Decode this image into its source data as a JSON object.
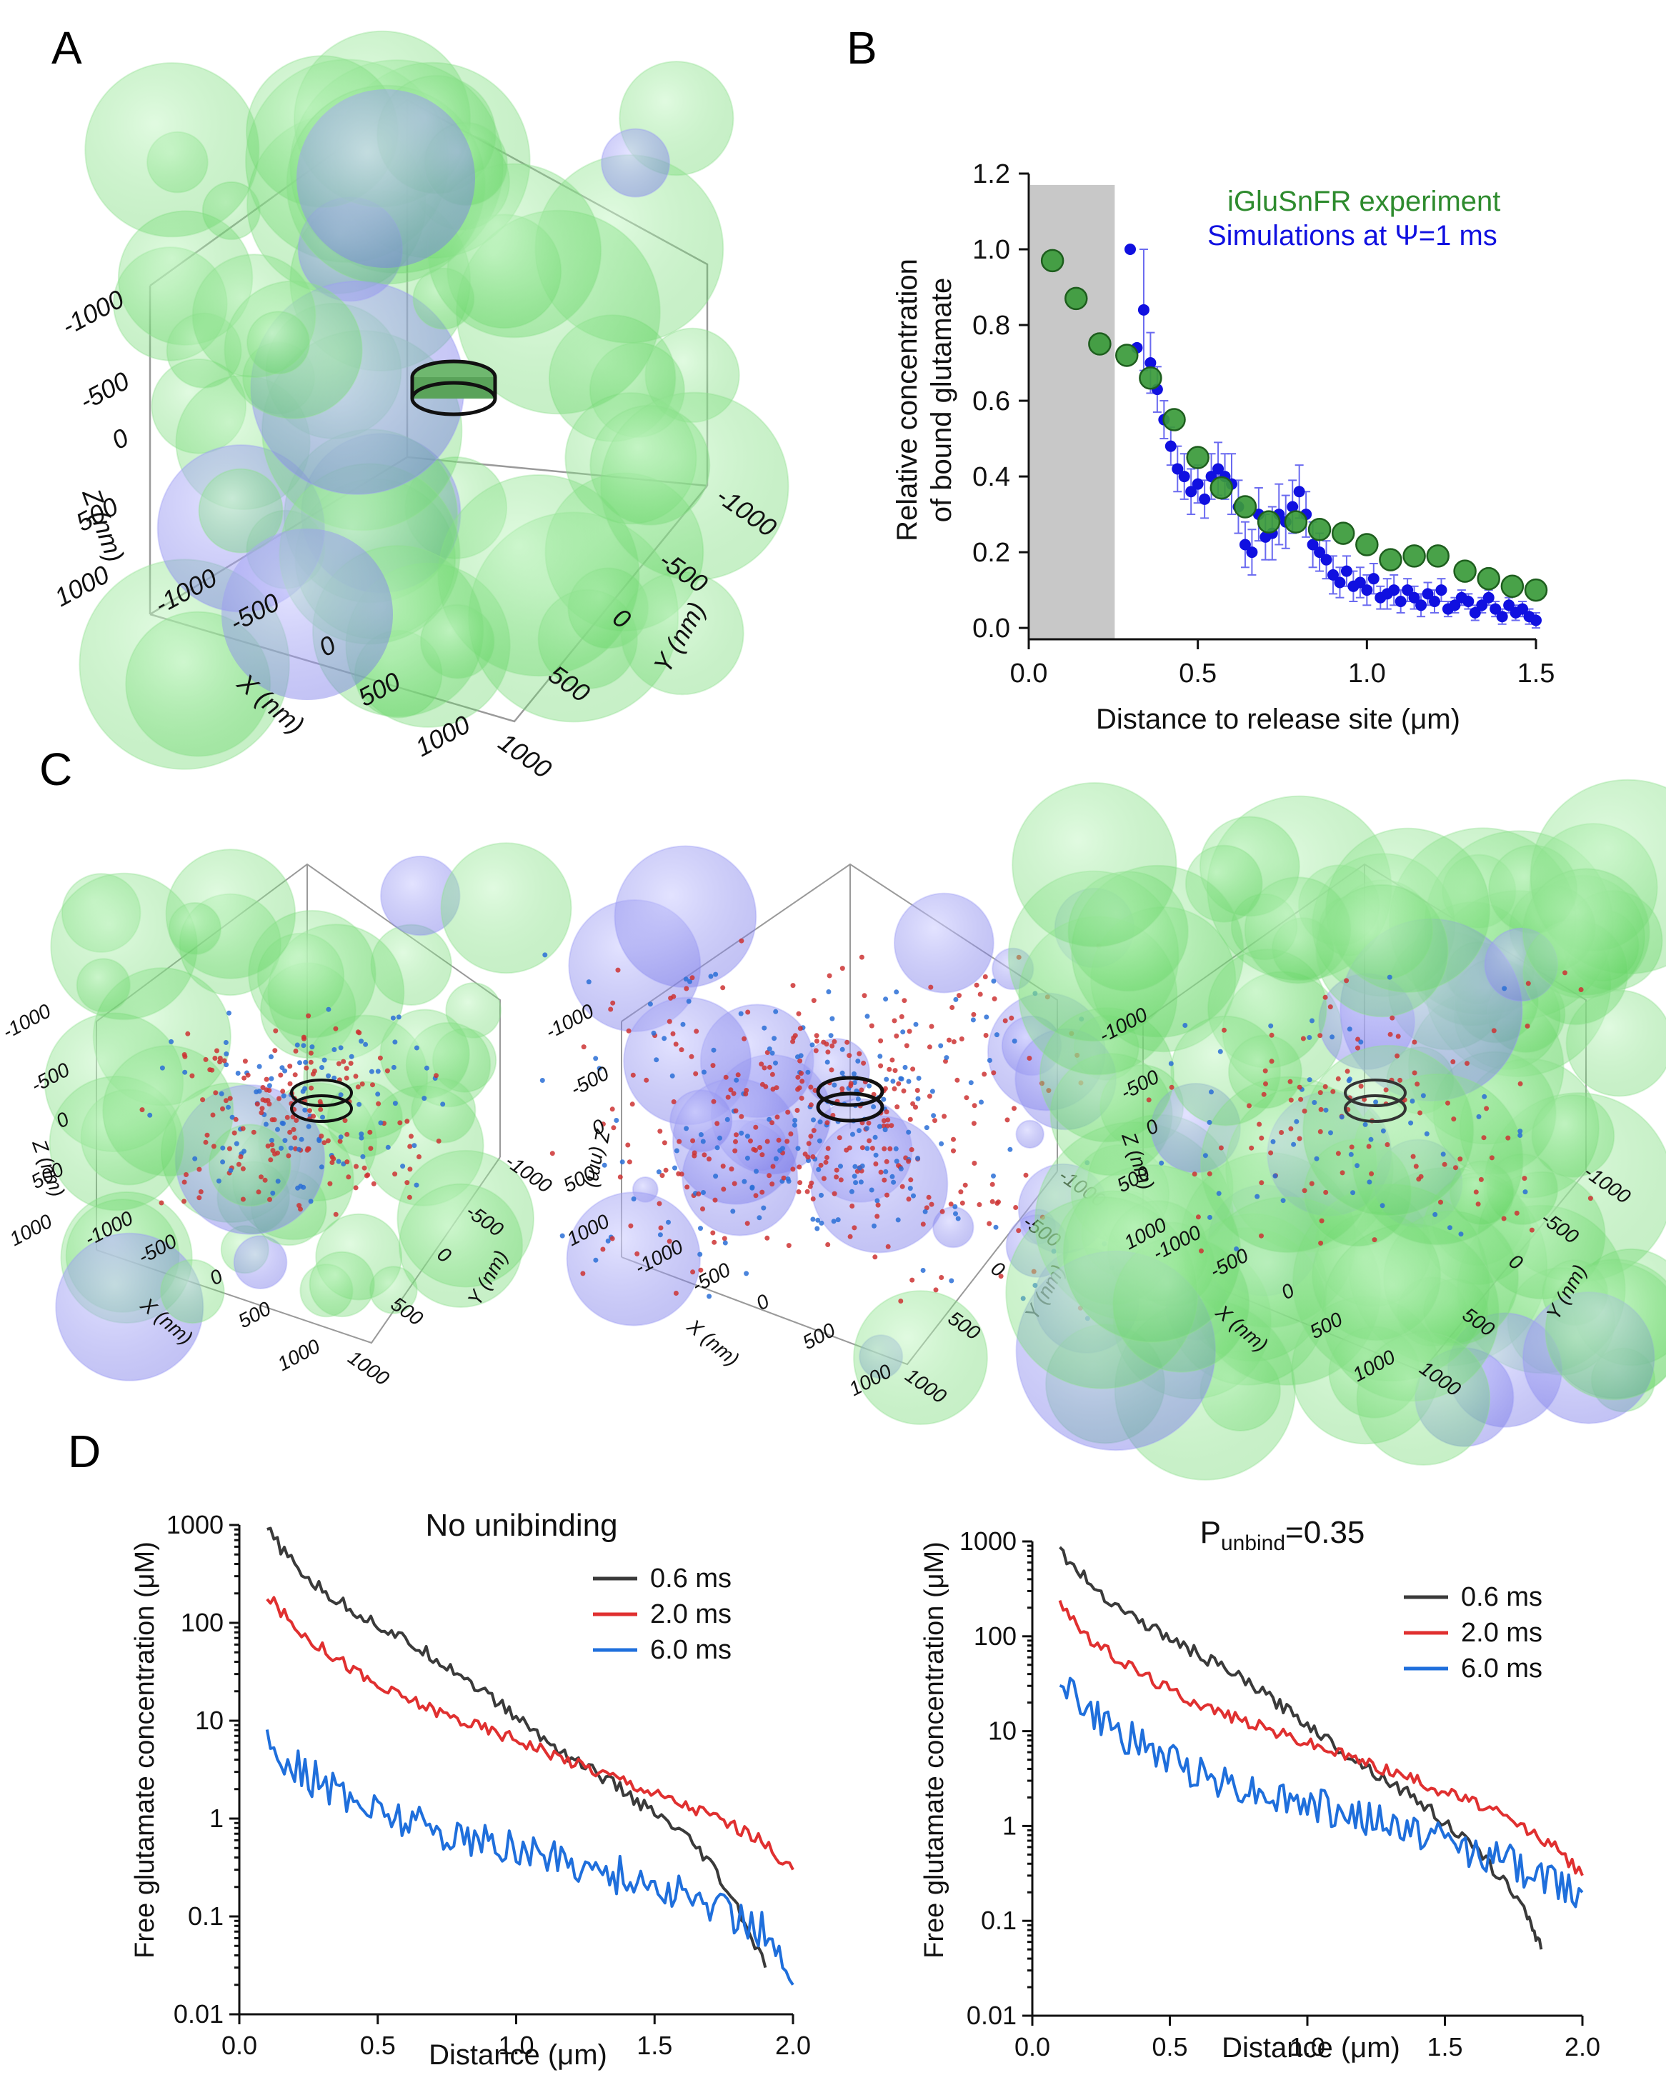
{
  "panels": {
    "A": "A",
    "B": "B",
    "C": "C",
    "D": "D"
  },
  "colors": {
    "green": "#2e8b2e",
    "green_sphere": "#7ee07e",
    "blue_sphere": "#8c8cf0",
    "blue_point": "#1010e0",
    "red_point": "#cc3333",
    "black_line": "#3a3a3a",
    "red_line": "#e03030",
    "blue_line": "#1f6fdc",
    "gray_band": "#c8c8c8"
  },
  "panel_A": {
    "z_label": "Z (nm)",
    "x_label": "X (nm)",
    "y_label": "Y (nm)",
    "z_ticks": [
      "-1000",
      "-500",
      "0",
      "500",
      "1000"
    ],
    "x_ticks": [
      "-1000",
      "-500",
      "0",
      "500",
      "1000"
    ],
    "y_ticks": [
      "-1000",
      "-500",
      "0",
      "500",
      "1000"
    ]
  },
  "panel_C": {
    "z_label": "Z (nm)",
    "x_label": "X (nm)",
    "y_label": "Y (nm)",
    "z_ticks": [
      "-1000",
      "-500",
      "0",
      "500",
      "1000"
    ],
    "x_ticks": [
      "-1000",
      "-500",
      "0",
      "500",
      "1000"
    ],
    "y_ticks": [
      "-1000",
      "-500",
      "0",
      "500",
      "1000"
    ]
  },
  "chart_data": [
    {
      "id": "B",
      "type": "scatter",
      "title": "",
      "xlabel": "Distance to release site (μm)",
      "ylabel_line1": "Relative concentration",
      "ylabel_line2": "of bound glutamate",
      "xlim": [
        0.0,
        1.5
      ],
      "ylim": [
        -0.03,
        1.2
      ],
      "xticks": [
        0.0,
        0.5,
        1.0,
        1.5
      ],
      "xtick_labels": [
        "0.0",
        "0.5",
        "1.0",
        "1.5"
      ],
      "yticks": [
        0.0,
        0.2,
        0.4,
        0.6,
        0.8,
        1.0,
        1.2
      ],
      "ytick_labels": [
        "0.0",
        "0.2",
        "0.4",
        "0.6",
        "0.8",
        "1.0",
        "1.2"
      ],
      "shaded_region_x": [
        0.0,
        0.25
      ],
      "legend": [
        "iGluSnFR experiment",
        "Simulations at Ψ=1 ms"
      ],
      "series": [
        {
          "name": "iGluSnFR experiment",
          "x": [
            0.07,
            0.14,
            0.21,
            0.29,
            0.36,
            0.43,
            0.5,
            0.57,
            0.64,
            0.71,
            0.79,
            0.86,
            0.93,
            1.0,
            1.07,
            1.14,
            1.21,
            1.29,
            1.36,
            1.43,
            1.5
          ],
          "y": [
            0.97,
            0.87,
            0.75,
            0.72,
            0.66,
            0.55,
            0.45,
            0.37,
            0.32,
            0.28,
            0.28,
            0.26,
            0.25,
            0.22,
            0.18,
            0.19,
            0.19,
            0.15,
            0.13,
            0.11,
            0.1
          ]
        },
        {
          "name": "Simulations at Ψ=1 ms",
          "x": [
            0.3,
            0.32,
            0.34,
            0.36,
            0.38,
            0.4,
            0.42,
            0.44,
            0.46,
            0.48,
            0.5,
            0.52,
            0.54,
            0.56,
            0.58,
            0.6,
            0.62,
            0.64,
            0.66,
            0.68,
            0.7,
            0.72,
            0.74,
            0.76,
            0.78,
            0.8,
            0.82,
            0.84,
            0.86,
            0.88,
            0.9,
            0.92,
            0.94,
            0.96,
            0.98,
            1.0,
            1.02,
            1.04,
            1.06,
            1.08,
            1.1,
            1.12,
            1.14,
            1.16,
            1.18,
            1.2,
            1.22,
            1.24,
            1.26,
            1.28,
            1.3,
            1.32,
            1.34,
            1.36,
            1.38,
            1.4,
            1.42,
            1.44,
            1.46,
            1.48,
            1.5
          ],
          "y": [
            1.0,
            0.74,
            0.84,
            0.7,
            0.63,
            0.55,
            0.48,
            0.42,
            0.4,
            0.36,
            0.38,
            0.34,
            0.4,
            0.42,
            0.4,
            0.38,
            0.32,
            0.22,
            0.2,
            0.3,
            0.24,
            0.25,
            0.3,
            0.28,
            0.32,
            0.36,
            0.3,
            0.22,
            0.2,
            0.18,
            0.14,
            0.12,
            0.15,
            0.11,
            0.12,
            0.1,
            0.13,
            0.08,
            0.09,
            0.1,
            0.07,
            0.1,
            0.08,
            0.06,
            0.09,
            0.07,
            0.1,
            0.05,
            0.06,
            0.08,
            0.07,
            0.04,
            0.06,
            0.08,
            0.05,
            0.03,
            0.06,
            0.04,
            0.05,
            0.03,
            0.02
          ],
          "error": [
            0.0,
            0.0,
            0.16,
            0.08,
            0.06,
            0.05,
            0.05,
            0.06,
            0.06,
            0.06,
            0.05,
            0.05,
            0.06,
            0.07,
            0.06,
            0.08,
            0.07,
            0.06,
            0.06,
            0.07,
            0.06,
            0.07,
            0.08,
            0.07,
            0.07,
            0.07,
            0.06,
            0.06,
            0.05,
            0.05,
            0.05,
            0.04,
            0.04,
            0.04,
            0.04,
            0.04,
            0.04,
            0.03,
            0.04,
            0.04,
            0.03,
            0.03,
            0.03,
            0.03,
            0.03,
            0.03,
            0.03,
            0.02,
            0.02,
            0.02,
            0.02,
            0.02,
            0.02,
            0.02,
            0.02,
            0.02,
            0.02,
            0.02,
            0.02,
            0.02,
            0.02
          ]
        }
      ]
    },
    {
      "id": "D-left",
      "type": "line",
      "title": "No unibinding",
      "xlabel": "Distance (μm)",
      "ylabel": "Free glutamate concentration (μM)",
      "xlim": [
        0.0,
        2.0
      ],
      "yscale": "log",
      "ylim": [
        0.01,
        1000
      ],
      "xticks": [
        0.0,
        0.5,
        1.0,
        1.5,
        2.0
      ],
      "xtick_labels": [
        "0.0",
        "0.5",
        "1.0",
        "1.5",
        "2.0"
      ],
      "yticks": [
        0.01,
        0.1,
        1,
        10,
        100,
        1000
      ],
      "ytick_labels": [
        "0.01",
        "0.1",
        "1",
        "10",
        "100",
        "1000"
      ],
      "legend": [
        "0.6 ms",
        "2.0 ms",
        "6.0 ms"
      ],
      "series": [
        {
          "name": "0.6 ms",
          "x": [
            0.1,
            0.2,
            0.3,
            0.4,
            0.5,
            0.6,
            0.7,
            0.8,
            0.9,
            1.0,
            1.1,
            1.2,
            1.3,
            1.4,
            1.5,
            1.6,
            1.7,
            1.8,
            1.9
          ],
          "y": [
            900,
            380,
            210,
            140,
            95,
            65,
            45,
            30,
            18,
            11,
            6.5,
            4.2,
            2.8,
            1.8,
            1.1,
            0.7,
            0.35,
            0.12,
            0.03
          ]
        },
        {
          "name": "2.0 ms",
          "x": [
            0.1,
            0.2,
            0.3,
            0.4,
            0.5,
            0.6,
            0.7,
            0.8,
            0.9,
            1.0,
            1.1,
            1.2,
            1.3,
            1.4,
            1.5,
            1.6,
            1.7,
            1.8,
            1.9,
            2.0
          ],
          "y": [
            190,
            90,
            55,
            35,
            22,
            17,
            13,
            10,
            8,
            6.5,
            5,
            3.8,
            3.0,
            2.4,
            1.8,
            1.4,
            1.1,
            0.8,
            0.55,
            0.3
          ]
        },
        {
          "name": "6.0 ms",
          "x": [
            0.1,
            0.2,
            0.3,
            0.4,
            0.5,
            0.6,
            0.7,
            0.8,
            0.9,
            1.0,
            1.1,
            1.2,
            1.3,
            1.4,
            1.5,
            1.6,
            1.7,
            1.8,
            1.9,
            2.0
          ],
          "y": [
            6,
            3.5,
            2.2,
            1.6,
            1.2,
            1.0,
            0.8,
            0.65,
            0.55,
            0.48,
            0.42,
            0.36,
            0.3,
            0.25,
            0.2,
            0.16,
            0.13,
            0.1,
            0.07,
            0.02
          ]
        }
      ]
    },
    {
      "id": "D-right",
      "type": "line",
      "title_main": "P",
      "title_sub": "unbind",
      "title_tail": "=0.35",
      "xlabel": "Distance (μm)",
      "ylabel": "Free glutamate concentration (μM)",
      "xlim": [
        0.0,
        2.0
      ],
      "yscale": "log",
      "ylim": [
        0.01,
        1000
      ],
      "xticks": [
        0.0,
        0.5,
        1.0,
        1.5,
        2.0
      ],
      "xtick_labels": [
        "0.0",
        "0.5",
        "1.0",
        "1.5",
        "2.0"
      ],
      "yticks": [
        0.01,
        0.1,
        1,
        10,
        100,
        1000
      ],
      "ytick_labels": [
        "0.01",
        "0.1",
        "1",
        "10",
        "100",
        "1000"
      ],
      "legend": [
        "0.6 ms",
        "2.0 ms",
        "6.0 ms"
      ],
      "series": [
        {
          "name": "0.6 ms",
          "x": [
            0.1,
            0.2,
            0.3,
            0.4,
            0.5,
            0.6,
            0.7,
            0.8,
            0.9,
            1.0,
            1.1,
            1.2,
            1.3,
            1.4,
            1.5,
            1.6,
            1.7,
            1.8,
            1.85
          ],
          "y": [
            800,
            380,
            220,
            140,
            95,
            65,
            45,
            30,
            19,
            12,
            7,
            4.5,
            2.9,
            1.9,
            1.1,
            0.6,
            0.3,
            0.12,
            0.05
          ]
        },
        {
          "name": "2.0 ms",
          "x": [
            0.1,
            0.2,
            0.3,
            0.4,
            0.5,
            0.6,
            0.7,
            0.8,
            0.9,
            1.0,
            1.1,
            1.2,
            1.3,
            1.4,
            1.5,
            1.6,
            1.7,
            1.8,
            1.9,
            2.0
          ],
          "y": [
            240,
            95,
            60,
            40,
            27,
            20,
            15,
            12,
            9.5,
            7.5,
            6,
            4.8,
            3.8,
            3.0,
            2.3,
            1.8,
            1.3,
            0.9,
            0.6,
            0.3
          ]
        },
        {
          "name": "6.0 ms",
          "x": [
            0.1,
            0.2,
            0.3,
            0.4,
            0.5,
            0.6,
            0.7,
            0.8,
            0.9,
            1.0,
            1.1,
            1.2,
            1.3,
            1.4,
            1.5,
            1.6,
            1.7,
            1.8,
            1.9,
            2.0
          ],
          "y": [
            40,
            16,
            10,
            7,
            5,
            3.8,
            3.0,
            2.4,
            2.0,
            1.7,
            1.4,
            1.2,
            1.0,
            0.85,
            0.7,
            0.55,
            0.45,
            0.35,
            0.25,
            0.2
          ]
        }
      ]
    }
  ]
}
